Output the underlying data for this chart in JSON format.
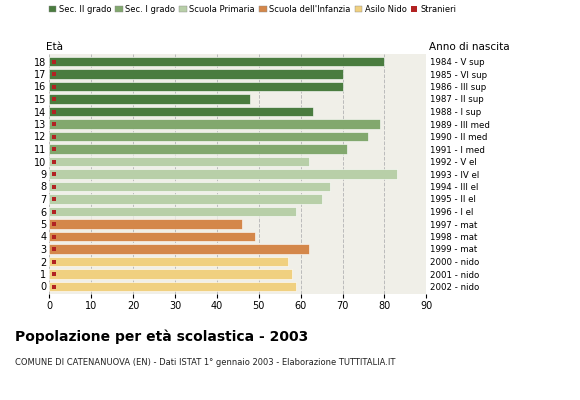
{
  "ages": [
    18,
    17,
    16,
    15,
    14,
    13,
    12,
    11,
    10,
    9,
    8,
    7,
    6,
    5,
    4,
    3,
    2,
    1,
    0
  ],
  "anno_nascita": [
    "1984 - V sup",
    "1985 - VI sup",
    "1986 - III sup",
    "1987 - II sup",
    "1988 - I sup",
    "1989 - III med",
    "1990 - II med",
    "1991 - I med",
    "1992 - V el",
    "1993 - IV el",
    "1994 - III el",
    "1995 - II el",
    "1996 - I el",
    "1997 - mat",
    "1998 - mat",
    "1999 - mat",
    "2000 - nido",
    "2001 - nido",
    "2002 - nido"
  ],
  "bar_values": [
    80,
    70,
    70,
    48,
    63,
    79,
    76,
    71,
    62,
    83,
    67,
    65,
    59,
    46,
    49,
    62,
    57,
    58,
    59
  ],
  "bar_colors": [
    "#4a7c3f",
    "#4a7c3f",
    "#4a7c3f",
    "#4a7c3f",
    "#4a7c3f",
    "#82a86e",
    "#82a86e",
    "#82a86e",
    "#b8cfa8",
    "#b8cfa8",
    "#b8cfa8",
    "#b8cfa8",
    "#b8cfa8",
    "#d4874a",
    "#d4874a",
    "#d4874a",
    "#f0d080",
    "#f0d080",
    "#f0d080"
  ],
  "xlim": [
    0,
    90
  ],
  "xticks": [
    0,
    10,
    20,
    30,
    40,
    50,
    60,
    70,
    80,
    90
  ],
  "title": "Popolazione per età scolastica - 2003",
  "subtitle": "COMUNE DI CATENANUOVA (EN) - Dati ISTAT 1° gennaio 2003 - Elaborazione TUTTITALIA.IT",
  "ylabel_age": "Età",
  "ylabel_anno": "Anno di nascita",
  "legend_labels": [
    "Sec. II grado",
    "Sec. I grado",
    "Scuola Primaria",
    "Scuola dell'Infanzia",
    "Asilo Nido",
    "Stranieri"
  ],
  "legend_colors": [
    "#4a7c3f",
    "#82a86e",
    "#b8cfa8",
    "#d4874a",
    "#f0d080",
    "#b22222"
  ],
  "bg_color": "#ffffff",
  "plot_bg_color": "#f0efe8",
  "grid_color": "#bbbbbb",
  "bar_height": 0.78,
  "stranieri_size": 3.5
}
